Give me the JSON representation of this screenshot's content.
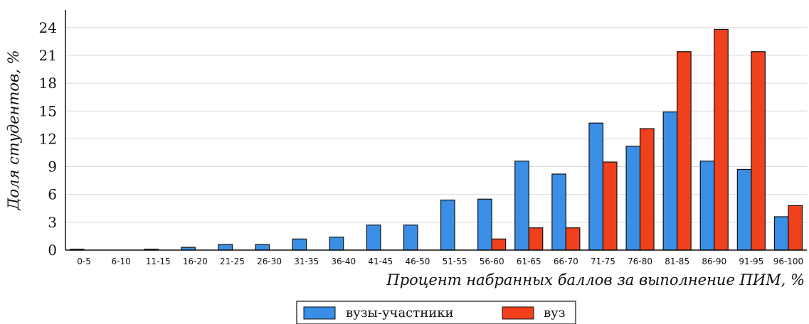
{
  "chart_data": {
    "type": "bar",
    "title": "",
    "xlabel": "Процент набранных баллов за выполнение ПИМ, %",
    "ylabel": "Доля студентов, %",
    "ylim": [
      0,
      26
    ],
    "yticks": [
      "0",
      "3",
      "6",
      "9",
      "12",
      "15",
      "18",
      "21",
      "24"
    ],
    "grid": "horizontal",
    "legend_position": "bottom-center",
    "categories": [
      "0-5",
      "6-10",
      "11-15",
      "16-20",
      "21-25",
      "26-30",
      "31-35",
      "36-40",
      "41-45",
      "46-50",
      "51-55",
      "56-60",
      "61-65",
      "66-70",
      "71-75",
      "76-80",
      "81-85",
      "86-90",
      "91-95",
      "96-100"
    ],
    "series": [
      {
        "name": "вузы-участники",
        "color": "#3a8ee6",
        "values": [
          0.1,
          0,
          0.1,
          0.3,
          0.6,
          0.6,
          1.2,
          1.4,
          2.7,
          2.7,
          5.4,
          5.5,
          9.6,
          8.2,
          13.7,
          11.2,
          14.9,
          9.6,
          8.7,
          3.6
        ]
      },
      {
        "name": "вуз",
        "color": "#f0401c",
        "values": [
          0,
          0,
          0,
          0,
          0,
          0,
          0,
          0,
          0,
          0,
          0,
          1.2,
          2.4,
          2.4,
          9.5,
          13.1,
          21.4,
          23.8,
          21.4,
          4.8
        ]
      }
    ]
  }
}
